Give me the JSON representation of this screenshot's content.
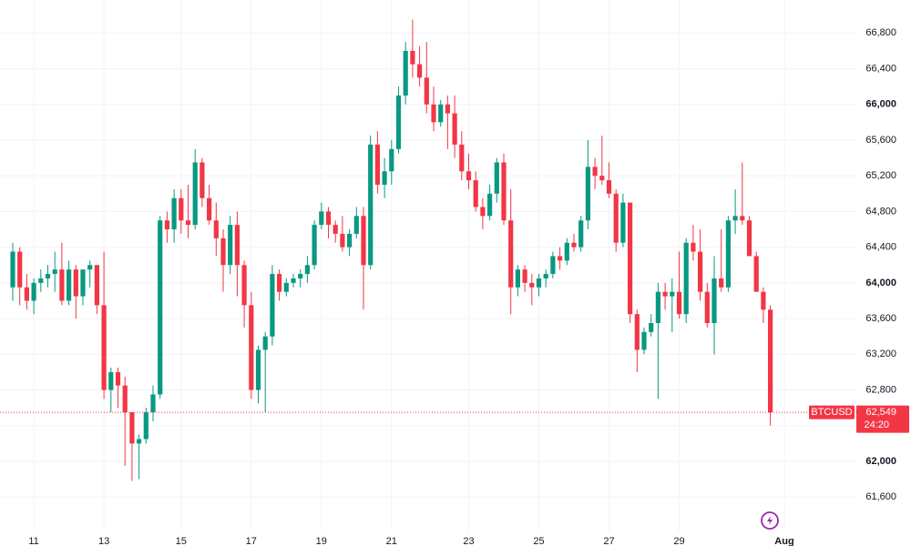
{
  "chart_data": {
    "type": "candlestick",
    "categories": [
      null,
      null,
      null,
      "11",
      null,
      null,
      null,
      null,
      null,
      null,
      null,
      null,
      null,
      "13",
      null,
      null,
      null,
      null,
      null,
      null,
      null,
      null,
      null,
      null,
      "15",
      null,
      null,
      null,
      null,
      null,
      null,
      null,
      null,
      null,
      "17",
      null,
      null,
      null,
      null,
      null,
      null,
      null,
      null,
      null,
      "19",
      null,
      null,
      null,
      null,
      null,
      null,
      null,
      null,
      null,
      "21",
      null,
      null,
      null,
      null,
      null,
      null,
      null,
      null,
      null,
      null,
      "23",
      null,
      null,
      null,
      null,
      null,
      null,
      null,
      null,
      null,
      "25",
      null,
      null,
      null,
      null,
      null,
      null,
      null,
      null,
      null,
      "27",
      null,
      null,
      null,
      null,
      null,
      null,
      null,
      null,
      null,
      "29",
      null,
      null,
      null,
      null,
      null,
      null,
      null,
      null,
      null,
      null,
      null,
      null,
      null,
      null,
      "Aug"
    ],
    "candles": [
      {
        "open": 63950,
        "high": 64450,
        "low": 63800,
        "close": 64350
      },
      {
        "open": 64350,
        "high": 64400,
        "low": 63750,
        "close": 63950
      },
      {
        "open": 63950,
        "high": 64100,
        "low": 63700,
        "close": 63800
      },
      {
        "open": 63800,
        "high": 64050,
        "low": 63650,
        "close": 64000
      },
      {
        "open": 64000,
        "high": 64150,
        "low": 63900,
        "close": 64050
      },
      {
        "open": 64050,
        "high": 64200,
        "low": 63950,
        "close": 64100
      },
      {
        "open": 64100,
        "high": 64350,
        "low": 63900,
        "close": 64150
      },
      {
        "open": 64150,
        "high": 64450,
        "low": 63750,
        "close": 63800
      },
      {
        "open": 63800,
        "high": 64250,
        "low": 63750,
        "close": 64150
      },
      {
        "open": 64150,
        "high": 64200,
        "low": 63600,
        "close": 63850
      },
      {
        "open": 63850,
        "high": 64150,
        "low": 63750,
        "close": 64150
      },
      {
        "open": 64150,
        "high": 64250,
        "low": 63950,
        "close": 64200
      },
      {
        "open": 64200,
        "high": 64200,
        "low": 63650,
        "close": 63750
      },
      {
        "open": 63750,
        "high": 64350,
        "low": 62700,
        "close": 62800
      },
      {
        "open": 62800,
        "high": 63050,
        "low": 62550,
        "close": 63000
      },
      {
        "open": 63000,
        "high": 63050,
        "low": 62600,
        "close": 62850
      },
      {
        "open": 62850,
        "high": 62950,
        "low": 61950,
        "close": 62550
      },
      {
        "open": 62550,
        "high": 62550,
        "low": 61780,
        "close": 62200
      },
      {
        "open": 62200,
        "high": 62300,
        "low": 61800,
        "close": 62250
      },
      {
        "open": 62250,
        "high": 62600,
        "low": 62200,
        "close": 62550
      },
      {
        "open": 62550,
        "high": 62850,
        "low": 62450,
        "close": 62750
      },
      {
        "open": 62750,
        "high": 64750,
        "low": 62700,
        "close": 64700
      },
      {
        "open": 64700,
        "high": 64800,
        "low": 64450,
        "close": 64600
      },
      {
        "open": 64600,
        "high": 65050,
        "low": 64450,
        "close": 64950
      },
      {
        "open": 64950,
        "high": 65050,
        "low": 64550,
        "close": 64700
      },
      {
        "open": 64700,
        "high": 65100,
        "low": 64500,
        "close": 64650
      },
      {
        "open": 64650,
        "high": 65500,
        "low": 64600,
        "close": 65350
      },
      {
        "open": 65350,
        "high": 65400,
        "low": 64850,
        "close": 64950
      },
      {
        "open": 64950,
        "high": 65100,
        "low": 64650,
        "close": 64700
      },
      {
        "open": 64700,
        "high": 64900,
        "low": 64300,
        "close": 64500
      },
      {
        "open": 64500,
        "high": 64600,
        "low": 63900,
        "close": 64200
      },
      {
        "open": 64200,
        "high": 64750,
        "low": 64100,
        "close": 64650
      },
      {
        "open": 64650,
        "high": 64800,
        "low": 63850,
        "close": 64200
      },
      {
        "open": 64200,
        "high": 64250,
        "low": 63500,
        "close": 63750
      },
      {
        "open": 63750,
        "high": 63900,
        "low": 62700,
        "close": 62800
      },
      {
        "open": 62800,
        "high": 63300,
        "low": 62650,
        "close": 63250
      },
      {
        "open": 63250,
        "high": 63450,
        "low": 62550,
        "close": 63400
      },
      {
        "open": 63400,
        "high": 64200,
        "low": 63300,
        "close": 64100
      },
      {
        "open": 64100,
        "high": 64150,
        "low": 63800,
        "close": 63900
      },
      {
        "open": 63900,
        "high": 64050,
        "low": 63850,
        "close": 64000
      },
      {
        "open": 64000,
        "high": 64100,
        "low": 63950,
        "close": 64050
      },
      {
        "open": 64050,
        "high": 64150,
        "low": 63950,
        "close": 64100
      },
      {
        "open": 64100,
        "high": 64300,
        "low": 64000,
        "close": 64200
      },
      {
        "open": 64200,
        "high": 64700,
        "low": 64150,
        "close": 64650
      },
      {
        "open": 64650,
        "high": 64900,
        "low": 64600,
        "close": 64800
      },
      {
        "open": 64800,
        "high": 64850,
        "low": 64500,
        "close": 64650
      },
      {
        "open": 64650,
        "high": 64700,
        "low": 64450,
        "close": 64550
      },
      {
        "open": 64550,
        "high": 64750,
        "low": 64350,
        "close": 64400
      },
      {
        "open": 64400,
        "high": 64600,
        "low": 64300,
        "close": 64550
      },
      {
        "open": 64550,
        "high": 64850,
        "low": 64500,
        "close": 64750
      },
      {
        "open": 64750,
        "high": 64850,
        "low": 63700,
        "close": 64200
      },
      {
        "open": 64200,
        "high": 65650,
        "low": 64150,
        "close": 65550
      },
      {
        "open": 65550,
        "high": 65700,
        "low": 65000,
        "close": 65100
      },
      {
        "open": 65100,
        "high": 65400,
        "low": 64950,
        "close": 65250
      },
      {
        "open": 65250,
        "high": 65600,
        "low": 65100,
        "close": 65500
      },
      {
        "open": 65500,
        "high": 66200,
        "low": 65450,
        "close": 66100
      },
      {
        "open": 66100,
        "high": 66700,
        "low": 66000,
        "close": 66600
      },
      {
        "open": 66600,
        "high": 66950,
        "low": 66300,
        "close": 66450
      },
      {
        "open": 66450,
        "high": 66650,
        "low": 66200,
        "close": 66300
      },
      {
        "open": 66300,
        "high": 66700,
        "low": 65900,
        "close": 66000
      },
      {
        "open": 66000,
        "high": 66200,
        "low": 65700,
        "close": 65800
      },
      {
        "open": 65800,
        "high": 66050,
        "low": 65750,
        "close": 66000
      },
      {
        "open": 66000,
        "high": 66100,
        "low": 65500,
        "close": 65900
      },
      {
        "open": 65900,
        "high": 66100,
        "low": 65400,
        "close": 65550
      },
      {
        "open": 65550,
        "high": 65700,
        "low": 65150,
        "close": 65250
      },
      {
        "open": 65250,
        "high": 65450,
        "low": 65050,
        "close": 65150
      },
      {
        "open": 65150,
        "high": 65250,
        "low": 64800,
        "close": 64850
      },
      {
        "open": 64850,
        "high": 64950,
        "low": 64600,
        "close": 64750
      },
      {
        "open": 64750,
        "high": 65100,
        "low": 64700,
        "close": 65000
      },
      {
        "open": 65000,
        "high": 65400,
        "low": 64900,
        "close": 65350
      },
      {
        "open": 65350,
        "high": 65450,
        "low": 64650,
        "close": 64700
      },
      {
        "open": 64700,
        "high": 65050,
        "low": 63650,
        "close": 63950
      },
      {
        "open": 63950,
        "high": 64200,
        "low": 63850,
        "close": 64150
      },
      {
        "open": 64150,
        "high": 64200,
        "low": 63900,
        "close": 64000
      },
      {
        "open": 64000,
        "high": 64100,
        "low": 63750,
        "close": 63950
      },
      {
        "open": 63950,
        "high": 64100,
        "low": 63850,
        "close": 64050
      },
      {
        "open": 64050,
        "high": 64150,
        "low": 63950,
        "close": 64100
      },
      {
        "open": 64100,
        "high": 64350,
        "low": 64050,
        "close": 64300
      },
      {
        "open": 64300,
        "high": 64400,
        "low": 64150,
        "close": 64250
      },
      {
        "open": 64250,
        "high": 64500,
        "low": 64200,
        "close": 64450
      },
      {
        "open": 64450,
        "high": 64550,
        "low": 64350,
        "close": 64400
      },
      {
        "open": 64400,
        "high": 64750,
        "low": 64350,
        "close": 64700
      },
      {
        "open": 64700,
        "high": 65600,
        "low": 64600,
        "close": 65300
      },
      {
        "open": 65300,
        "high": 65400,
        "low": 65050,
        "close": 65200
      },
      {
        "open": 65200,
        "high": 65650,
        "low": 65100,
        "close": 65150
      },
      {
        "open": 65150,
        "high": 65350,
        "low": 64950,
        "close": 65000
      },
      {
        "open": 65000,
        "high": 65050,
        "low": 64350,
        "close": 64450
      },
      {
        "open": 64450,
        "high": 65000,
        "low": 64400,
        "close": 64900
      },
      {
        "open": 64900,
        "high": 64900,
        "low": 63550,
        "close": 63650
      },
      {
        "open": 63650,
        "high": 63700,
        "low": 63000,
        "close": 63250
      },
      {
        "open": 63250,
        "high": 63500,
        "low": 63200,
        "close": 63450
      },
      {
        "open": 63450,
        "high": 63650,
        "low": 63400,
        "close": 63550
      },
      {
        "open": 63550,
        "high": 64000,
        "low": 62700,
        "close": 63900
      },
      {
        "open": 63900,
        "high": 64000,
        "low": 63700,
        "close": 63850
      },
      {
        "open": 63850,
        "high": 64050,
        "low": 63450,
        "close": 63900
      },
      {
        "open": 63900,
        "high": 64350,
        "low": 63600,
        "close": 63650
      },
      {
        "open": 63650,
        "high": 64500,
        "low": 63550,
        "close": 64450
      },
      {
        "open": 64450,
        "high": 64650,
        "low": 64250,
        "close": 64350
      },
      {
        "open": 64350,
        "high": 64600,
        "low": 63800,
        "close": 63900
      },
      {
        "open": 63900,
        "high": 64000,
        "low": 63500,
        "close": 63550
      },
      {
        "open": 63550,
        "high": 64300,
        "low": 63200,
        "close": 64050
      },
      {
        "open": 64050,
        "high": 64600,
        "low": 63900,
        "close": 63950
      },
      {
        "open": 63950,
        "high": 64750,
        "low": 63900,
        "close": 64700
      },
      {
        "open": 64700,
        "high": 65050,
        "low": 64550,
        "close": 64750
      },
      {
        "open": 64750,
        "high": 65350,
        "low": 64650,
        "close": 64700
      },
      {
        "open": 64700,
        "high": 64750,
        "low": 64300,
        "close": 64300
      },
      {
        "open": 64300,
        "high": 64350,
        "low": 63900,
        "close": 63900
      },
      {
        "open": 63900,
        "high": 63950,
        "low": 63550,
        "close": 63700
      },
      {
        "open": 63700,
        "high": 63750,
        "low": 62400,
        "close": 62549
      },
      null,
      null
    ],
    "up_color": "#089981",
    "down_color": "#f23645",
    "ylim": [
      61225,
      67170
    ],
    "yticks": [
      {
        "value": 61600,
        "label": "61,600"
      },
      {
        "value": 62000,
        "label": "62,000"
      },
      {
        "value": 62400,
        "label": "62,400"
      },
      {
        "value": 62800,
        "label": "62,800"
      },
      {
        "value": 63200,
        "label": "63,200"
      },
      {
        "value": 63600,
        "label": "63,600"
      },
      {
        "value": 64000,
        "label": "64,000"
      },
      {
        "value": 64400,
        "label": "64,400"
      },
      {
        "value": 64800,
        "label": "64,800"
      },
      {
        "value": 65200,
        "label": "65,200"
      },
      {
        "value": 65600,
        "label": "65,600"
      },
      {
        "value": 66000,
        "label": "66,000"
      },
      {
        "value": 66400,
        "label": "66,400"
      },
      {
        "value": 66800,
        "label": "66,800"
      }
    ],
    "grid": true,
    "last_price": {
      "symbol": "BTCUSD",
      "value": 62549,
      "label": "62,549",
      "countdown": "24:20"
    }
  }
}
